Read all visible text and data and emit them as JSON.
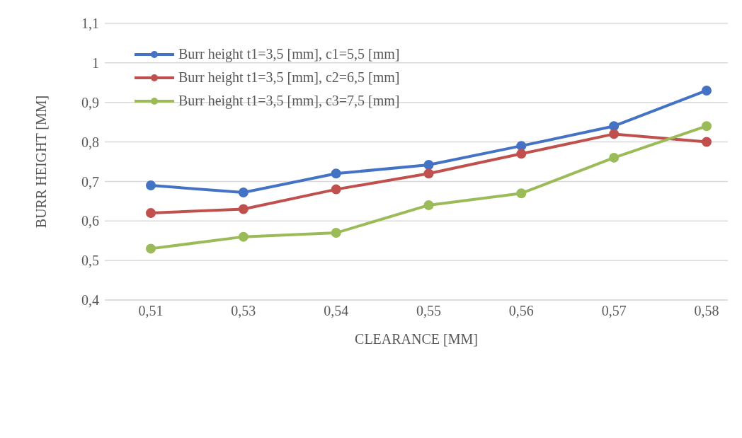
{
  "chart_data": {
    "type": "line",
    "xlabel": "CLEARANCE [MM]",
    "ylabel": "BURR HEIGHT [MM]",
    "categories": [
      "0,51",
      "0,53",
      "0,54",
      "0,55",
      "0,56",
      "0,57",
      "0,58"
    ],
    "series": [
      {
        "name": "Burr height t1=3,5 [mm], c1=5,5 [mm]",
        "color": "#4472c4",
        "values": [
          0.69,
          0.672,
          0.72,
          0.742,
          0.79,
          0.84,
          0.93
        ]
      },
      {
        "name": "Burr height t1=3,5 [mm], c2=6,5 [mm]",
        "color": "#c0504d",
        "values": [
          0.62,
          0.63,
          0.68,
          0.72,
          0.77,
          0.82,
          0.8
        ]
      },
      {
        "name": "Burr height t1=3,5 [mm], c3=7,5 [mm]",
        "color": "#9bbb59",
        "values": [
          0.53,
          0.56,
          0.57,
          0.64,
          0.67,
          0.76,
          0.84
        ]
      }
    ],
    "ylim": [
      0.4,
      1.1
    ],
    "yticks": [
      {
        "value": 0.4,
        "label": "0,4"
      },
      {
        "value": 0.5,
        "label": "0,5"
      },
      {
        "value": 0.6,
        "label": "0,6"
      },
      {
        "value": 0.7,
        "label": "0,7"
      },
      {
        "value": 0.8,
        "label": "0,8"
      },
      {
        "value": 0.9,
        "label": "0,9"
      },
      1,
      {
        "value": 1.1,
        "label": "1,1"
      }
    ],
    "grid": "y",
    "legend": "top left",
    "marker": "circle",
    "line_style": "solid"
  }
}
